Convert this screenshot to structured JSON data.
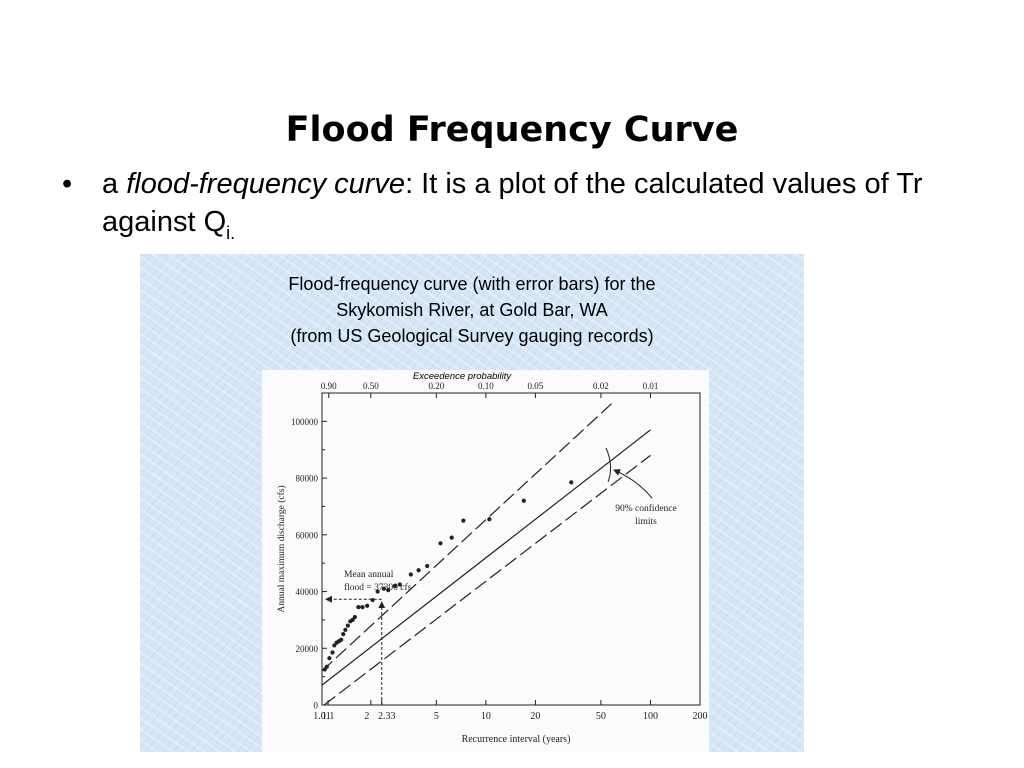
{
  "slide": {
    "title": "Flood Frequency Curve",
    "bullet_marker": "•",
    "bullet_prefix": "a ",
    "bullet_italic": "flood-frequency curve",
    "bullet_rest": ": It is a plot of the calculated values of Tr against Q",
    "bullet_subscript": "i."
  },
  "figure": {
    "caption_lines": [
      "Flood-frequency curve (with error bars) for the",
      "Skykomish River, at Gold Bar, WA",
      "(from US Geological Survey gauging records)"
    ]
  },
  "colors": {
    "panel_background": "#d6e6f6",
    "ink": "#222222"
  },
  "chart_data": {
    "type": "scatter",
    "xlabel": "Recurrence interval (years)",
    "ylabel": "Annual maximum discharge (cfs)",
    "top_axis_label": "Exceedence probability",
    "x_scale": "log",
    "xlim": [
      1.01,
      200
    ],
    "ylim": [
      0,
      110000
    ],
    "grid": false,
    "x_ticks": [
      1.01,
      1.1,
      2,
      2.33,
      5,
      10,
      20,
      50,
      100,
      200
    ],
    "x_tick_labels": [
      "1.01",
      "1.1",
      "2",
      "2.33",
      "5",
      "10",
      "20",
      "50",
      "100",
      "200"
    ],
    "y_ticks": [
      0,
      20000,
      40000,
      60000,
      80000,
      100000
    ],
    "y_tick_labels": [
      "0",
      "20000",
      "40000",
      "60000",
      "80000",
      "100000"
    ],
    "top_ticks": [
      {
        "recurrence": 1.11,
        "label": "0.90"
      },
      {
        "recurrence": 2,
        "label": "0.50"
      },
      {
        "recurrence": 5,
        "label": "0.20"
      },
      {
        "recurrence": 10,
        "label": "0.10"
      },
      {
        "recurrence": 20,
        "label": "0.05"
      },
      {
        "recurrence": 50,
        "label": "0.02"
      },
      {
        "recurrence": 100,
        "label": "0.01"
      }
    ],
    "series": [
      {
        "values": [
          {
            "x": 1.05,
            "y": 12500
          },
          {
            "x": 1.08,
            "y": 13500
          },
          {
            "x": 1.12,
            "y": 16500
          },
          {
            "x": 1.17,
            "y": 18500
          },
          {
            "x": 1.2,
            "y": 21000
          },
          {
            "x": 1.24,
            "y": 22000
          },
          {
            "x": 1.28,
            "y": 22500
          },
          {
            "x": 1.32,
            "y": 23000
          },
          {
            "x": 1.36,
            "y": 25000
          },
          {
            "x": 1.4,
            "y": 26500
          },
          {
            "x": 1.45,
            "y": 28000
          },
          {
            "x": 1.5,
            "y": 29500
          },
          {
            "x": 1.55,
            "y": 30000
          },
          {
            "x": 1.6,
            "y": 31000
          },
          {
            "x": 1.68,
            "y": 34500
          },
          {
            "x": 1.78,
            "y": 34500
          },
          {
            "x": 1.9,
            "y": 35000
          },
          {
            "x": 2.05,
            "y": 37000
          },
          {
            "x": 2.2,
            "y": 40000
          },
          {
            "x": 2.4,
            "y": 41000
          },
          {
            "x": 2.55,
            "y": 40500
          },
          {
            "x": 2.8,
            "y": 42000
          },
          {
            "x": 3.0,
            "y": 42500
          },
          {
            "x": 3.5,
            "y": 46000
          },
          {
            "x": 3.9,
            "y": 47500
          },
          {
            "x": 4.4,
            "y": 49000
          },
          {
            "x": 5.3,
            "y": 57000
          },
          {
            "x": 6.2,
            "y": 59000
          },
          {
            "x": 7.3,
            "y": 65000
          },
          {
            "x": 10.5,
            "y": 65500
          },
          {
            "x": 17,
            "y": 72000
          },
          {
            "x": 33,
            "y": 78500
          }
        ]
      }
    ],
    "fit_line": {
      "x": [
        1.01,
        100
      ],
      "y": [
        7000,
        97000
      ]
    },
    "confidence_upper": {
      "x": [
        1.01,
        60
      ],
      "y": [
        12000,
        107000
      ]
    },
    "confidence_lower": {
      "x": [
        1.04,
        100
      ],
      "y": [
        0,
        88000
      ]
    },
    "annotations": {
      "mean_flood": [
        "Mean annual",
        "flood = 37300 cfs"
      ],
      "mean_flood_value": 37300,
      "mean_flood_interval": 2.33,
      "confidence": [
        "90% confidence",
        "limits"
      ]
    }
  }
}
